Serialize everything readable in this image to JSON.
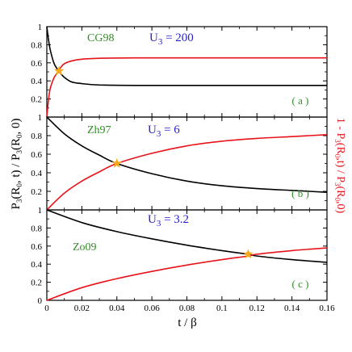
{
  "chart_data": {
    "type": "line",
    "xlabel": "t / β",
    "ylabel_left": "P_3(R_0, t) / P_3(R_0, 0)",
    "ylabel_right": "1 - P_3(R_0, t) / P_3(R_0, 0)",
    "xlim": [
      0,
      0.16
    ],
    "x_ticks": [
      "0",
      "0.02",
      "0.04",
      "0.06",
      "0.08",
      "0.1",
      "0.12",
      "0.14",
      "0.16"
    ],
    "colors": {
      "black_curve": "#000000",
      "red_curve": "#e8121a",
      "star": "#f7a81b",
      "tag": "#2f8f25",
      "u_label": "#2a22c8"
    },
    "panels": [
      {
        "tag": "CG98",
        "u_main": "U",
        "u_sub": "3",
        "u_value": "= 200",
        "panel_label": "( a )",
        "ylim": [
          0,
          1
        ],
        "y_ticks": [
          "1",
          "0.8",
          "0.6",
          "0.4",
          "0.2"
        ],
        "series": [
          {
            "color": "black",
            "x": [
              0,
              0.001,
              0.002,
              0.004,
              0.006,
              0.008,
              0.01,
              0.014,
              0.02,
              0.03,
              0.05,
              0.08,
              0.12,
              0.16
            ],
            "y": [
              1.0,
              0.85,
              0.74,
              0.6,
              0.53,
              0.48,
              0.44,
              0.39,
              0.37,
              0.355,
              0.35,
              0.35,
              0.35,
              0.35
            ]
          },
          {
            "color": "red",
            "x": [
              0,
              0.001,
              0.002,
              0.004,
              0.006,
              0.008,
              0.01,
              0.014,
              0.02,
              0.03,
              0.05,
              0.08,
              0.12,
              0.16
            ],
            "y": [
              0.0,
              0.2,
              0.32,
              0.43,
              0.49,
              0.55,
              0.59,
              0.62,
              0.64,
              0.65,
              0.655,
              0.655,
              0.655,
              0.655
            ]
          }
        ],
        "crossing": {
          "x": 0.007,
          "y": 0.51
        }
      },
      {
        "tag": "Zh97",
        "u_main": "U",
        "u_sub": "3",
        "u_value": "= 6",
        "panel_label": "( b )",
        "ylim": [
          0,
          1
        ],
        "y_ticks": [
          "1",
          "0.8",
          "0.6",
          "0.4",
          "0.2"
        ],
        "series": [
          {
            "color": "black",
            "x": [
              0,
              0.01,
              0.02,
              0.03,
              0.04,
              0.06,
              0.08,
              0.1,
              0.12,
              0.14,
              0.16
            ],
            "y": [
              1.0,
              0.82,
              0.69,
              0.59,
              0.5,
              0.39,
              0.31,
              0.26,
              0.23,
              0.21,
              0.19
            ]
          },
          {
            "color": "red",
            "x": [
              0,
              0.01,
              0.02,
              0.03,
              0.04,
              0.06,
              0.08,
              0.1,
              0.12,
              0.14,
              0.16
            ],
            "y": [
              0.0,
              0.18,
              0.31,
              0.41,
              0.5,
              0.61,
              0.69,
              0.74,
              0.77,
              0.79,
              0.81
            ]
          }
        ],
        "crossing": {
          "x": 0.04,
          "y": 0.5
        }
      },
      {
        "tag": "Zo09",
        "u_main": "U",
        "u_sub": "3",
        "u_value": "= 3.2",
        "panel_label": "( c )",
        "ylim": [
          0,
          1
        ],
        "y_ticks": [
          "1",
          "0.8",
          "0.6",
          "0.4",
          "0.2",
          "0"
        ],
        "series": [
          {
            "color": "black",
            "x": [
              0,
              0.02,
              0.04,
              0.06,
              0.08,
              0.1,
              0.115,
              0.12,
              0.14,
              0.16
            ],
            "y": [
              1.0,
              0.86,
              0.76,
              0.68,
              0.61,
              0.55,
              0.51,
              0.49,
              0.45,
              0.42
            ]
          },
          {
            "color": "red",
            "x": [
              0,
              0.02,
              0.04,
              0.06,
              0.08,
              0.1,
              0.115,
              0.12,
              0.14,
              0.16
            ],
            "y": [
              0.0,
              0.14,
              0.24,
              0.32,
              0.39,
              0.45,
              0.49,
              0.51,
              0.55,
              0.58
            ]
          }
        ],
        "crossing": {
          "x": 0.115,
          "y": 0.51
        }
      }
    ]
  }
}
